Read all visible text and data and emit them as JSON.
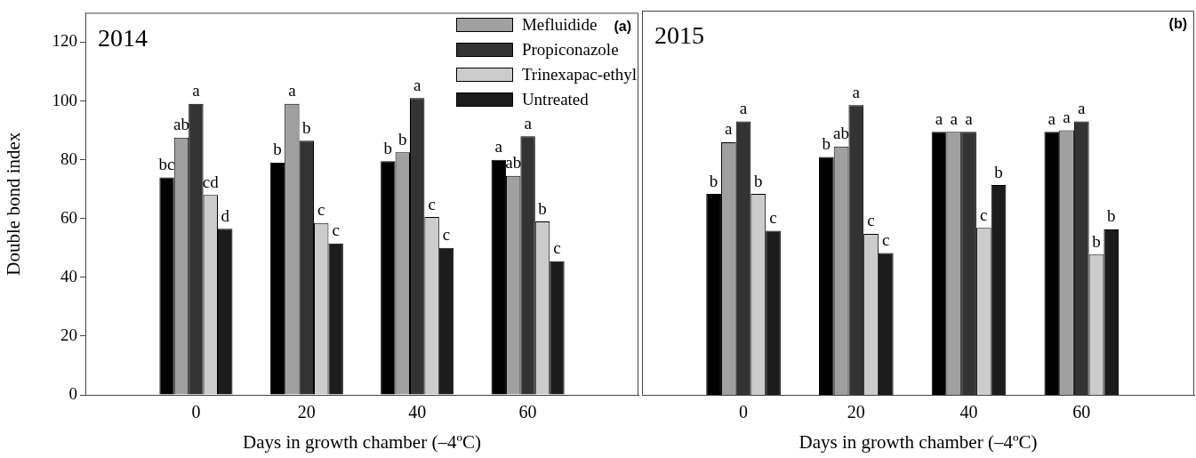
{
  "chart_data": [
    {
      "type": "bar",
      "title": "2014",
      "xlabel": "Days in growth chamber (–4ºC)",
      "ylabel": "Double bond index",
      "annotations": [
        "(a)"
      ],
      "x": [
        0,
        20,
        40,
        60
      ],
      "xlim": [
        -20,
        80
      ],
      "xticks": [
        0,
        20,
        40,
        60
      ],
      "ylim": [
        0,
        130
      ],
      "yticks": [
        0,
        20,
        40,
        60,
        80,
        100,
        120
      ],
      "legend": "top right",
      "series": [
        {
          "color": "#000000",
          "values": [
            74,
            79,
            79.5,
            80
          ],
          "value_labels": [
            "bc",
            "b",
            "b",
            "a"
          ]
        },
        {
          "name": "Mefluidide",
          "color": "#a0a0a0",
          "values": [
            87.5,
            99,
            82.5,
            74.5
          ],
          "value_labels": [
            "ab",
            "a",
            "b",
            "ab"
          ]
        },
        {
          "name": "Propiconazole",
          "color": "#333333",
          "values": [
            99,
            86.5,
            101,
            88
          ],
          "value_labels": [
            "a",
            "b",
            "a",
            "a"
          ]
        },
        {
          "name": "Trinexapac-ethyl",
          "color": "#cccccc",
          "values": [
            68,
            58.5,
            60.5,
            59
          ],
          "value_labels": [
            "cd",
            "c",
            "c",
            "b"
          ]
        },
        {
          "name": "Untreated",
          "color": "#1c1c1c",
          "values": [
            56.5,
            51.5,
            50,
            45.5
          ],
          "value_labels": [
            "d",
            "c",
            "c",
            "c"
          ]
        }
      ]
    },
    {
      "type": "bar",
      "title": "2015",
      "xlabel": "Days in growth chamber (–4ºC)",
      "annotations": [
        "(b)"
      ],
      "x": [
        0,
        20,
        40,
        60
      ],
      "xlim": [
        -18,
        80
      ],
      "xticks": [
        0,
        20,
        40,
        60
      ],
      "ylim": [
        0,
        130
      ],
      "tick_labels": "x",
      "series": [
        {
          "color": "#000000",
          "values": [
            68,
            80.5,
            89,
            89
          ],
          "value_labels": [
            "b",
            "b",
            "a",
            "a"
          ]
        },
        {
          "color": "#a0a0a0",
          "values": [
            85.5,
            84,
            89,
            89.5
          ],
          "value_labels": [
            "a",
            "ab",
            "a",
            "a"
          ]
        },
        {
          "color": "#333333",
          "values": [
            92.5,
            98,
            89,
            92.5
          ],
          "value_labels": [
            "a",
            "a",
            "a",
            "a"
          ]
        },
        {
          "color": "#cccccc",
          "values": [
            68,
            54.5,
            56.5,
            47.5
          ],
          "value_labels": [
            "b",
            "c",
            "c",
            "b"
          ]
        },
        {
          "color": "#1c1c1c",
          "values": [
            55.5,
            48,
            71,
            56
          ],
          "value_labels": [
            "c",
            "c",
            "b",
            "b"
          ]
        }
      ]
    }
  ]
}
